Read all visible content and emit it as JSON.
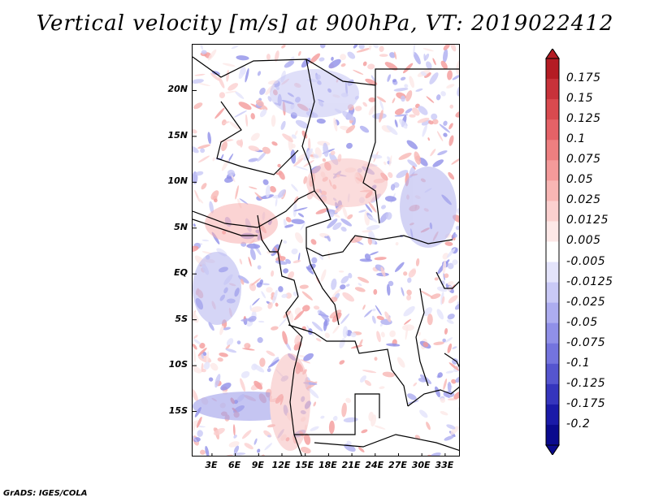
{
  "title": "Vertical velocity [m/s] at 900hPa, VT: 2019022412",
  "footer": "GrADS: IGES/COLA",
  "map": {
    "lat_labels": [
      "20N",
      "15N",
      "10N",
      "5N",
      "EQ",
      "5S",
      "10S",
      "15S"
    ],
    "lon_labels": [
      "3E",
      "6E",
      "9E",
      "12E",
      "15E",
      "18E",
      "21E",
      "24E",
      "27E",
      "30E",
      "33E"
    ],
    "lat_values": [
      20,
      15,
      10,
      5,
      0,
      -5,
      -10,
      -15
    ],
    "lon_values": [
      3,
      6,
      9,
      12,
      15,
      18,
      21,
      24,
      27,
      30,
      33
    ],
    "lat_range": [
      -20,
      25
    ],
    "lon_range": [
      0.5,
      35
    ]
  },
  "colorbar": {
    "labels": [
      "0.175",
      "0.15",
      "0.125",
      "0.1",
      "0.075",
      "0.05",
      "0.025",
      "0.0125",
      "0.005",
      "-0.005",
      "-0.0125",
      "-0.025",
      "-0.05",
      "-0.075",
      "-0.1",
      "-0.125",
      "-0.175",
      "-0.2"
    ],
    "colors": [
      "#b41c24",
      "#c8323a",
      "#d94a4f",
      "#e56267",
      "#ee7f80",
      "#f49a9a",
      "#f8b6b4",
      "#fbd0cf",
      "#fde8e7",
      "#ffffff",
      "#e4e4fb",
      "#c9c9f6",
      "#adadf0",
      "#9090e8",
      "#7474de",
      "#5555cf",
      "#3535bd",
      "#1a1aa8",
      "#0a0a8e"
    ]
  }
}
